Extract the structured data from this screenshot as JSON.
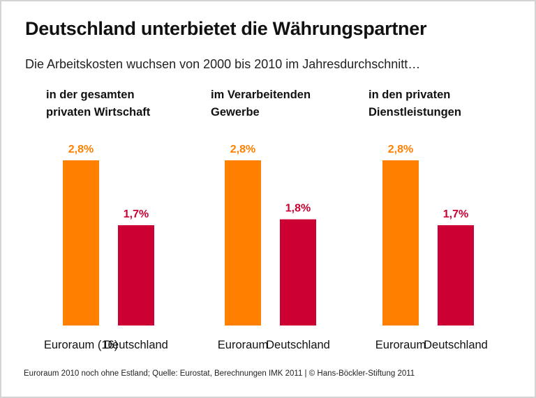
{
  "title": "Deutschland unterbietet die Währungspartner",
  "subtitle": "Die Arbeitskosten wuchsen von 2000 bis 2010 im Jahresdurchschnitt…",
  "footnote": "Euroraum 2010 noch ohne Estland; Quelle: Eurostat, Berechnungen IMK 2011 | © Hans-Böckler-Stiftung 2011",
  "colors": {
    "euroraum": "#ff8000",
    "deutschland": "#cc0033"
  },
  "chart_data": {
    "type": "bar",
    "title": "Deutschland unterbietet die Währungspartner",
    "groups": [
      {
        "heading": [
          "in der gesamten",
          "privaten Wirtschaft"
        ],
        "categories": [
          "Euroraum (16)",
          "Deutschland"
        ],
        "values": [
          2.8,
          1.7
        ],
        "labels": [
          "2,8%",
          "1,7%"
        ]
      },
      {
        "heading": [
          "im Verarbeitenden",
          "Gewerbe"
        ],
        "categories": [
          "Euroraum",
          "Deutschland"
        ],
        "values": [
          2.8,
          1.8
        ],
        "labels": [
          "2,8%",
          "1,8%"
        ]
      },
      {
        "heading": [
          "in den privaten",
          "Dienstleistungen"
        ],
        "categories": [
          "Euroraum",
          "Deutschland"
        ],
        "values": [
          2.8,
          1.7
        ],
        "labels": [
          "2,8%",
          "1,7%"
        ]
      }
    ],
    "unit": "%",
    "ylim": [
      0,
      2.8
    ],
    "grid": false
  }
}
